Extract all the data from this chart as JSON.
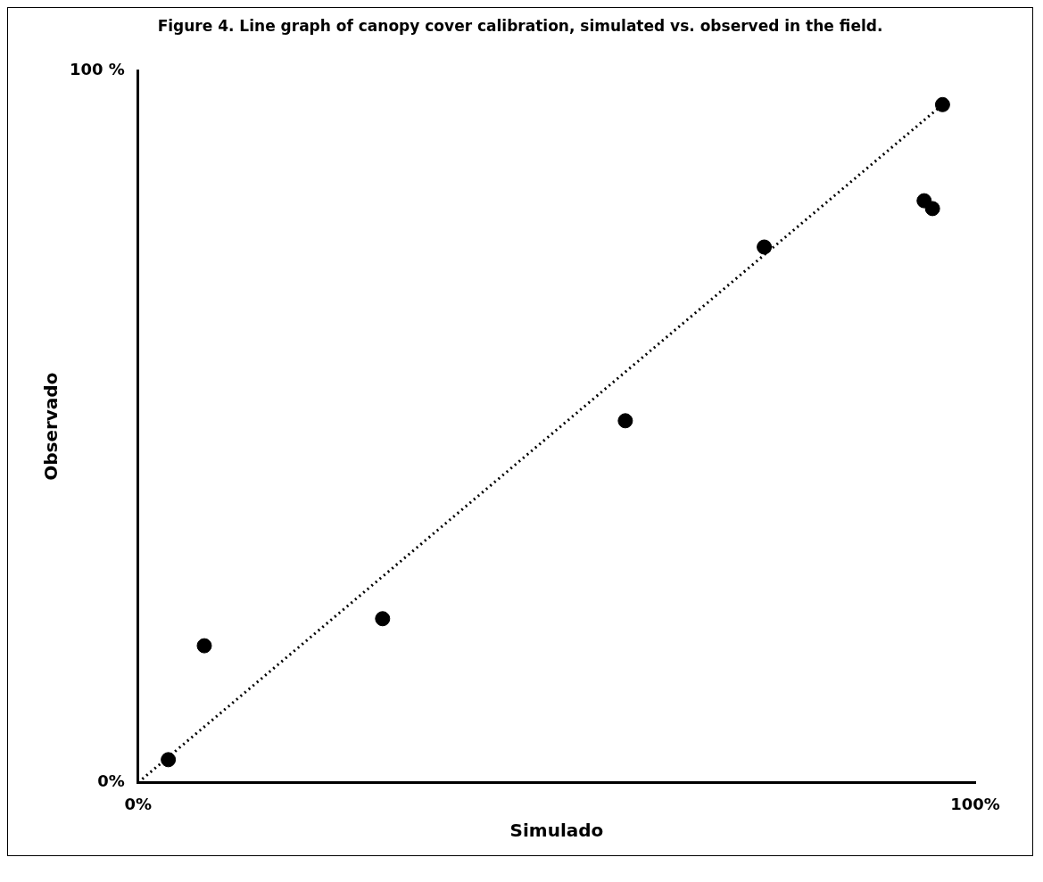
{
  "chart_data": {
    "type": "scatter",
    "title": "Figure 4. Line graph of canopy cover calibration, simulated vs. observed in the field.",
    "xlabel": "Simulado",
    "ylabel": "Observado",
    "xlim": [
      0,
      100
    ],
    "ylim": [
      0,
      100
    ],
    "xticks": [
      {
        "value": 0,
        "label": "0%"
      },
      {
        "value": 100,
        "label": "100%"
      }
    ],
    "yticks": [
      {
        "value": 0,
        "label": "0%"
      },
      {
        "value": 100,
        "label": "100 %"
      }
    ],
    "grid": false,
    "legend": false,
    "marker": "circle",
    "series": [
      {
        "color": "#000000",
        "x": [
          3.6,
          7.9,
          29.2,
          58.2,
          74.8,
          93.9,
          94.9,
          96.1
        ],
        "values": [
          3.2,
          19.2,
          23.0,
          50.8,
          75.2,
          81.7,
          80.6,
          95.2
        ]
      },
      {
        "type": "line",
        "color": "#000000",
        "line_style": "dotted",
        "marker": "none",
        "x": [
          0,
          96.1
        ],
        "values": [
          0,
          95.2
        ]
      }
    ]
  }
}
